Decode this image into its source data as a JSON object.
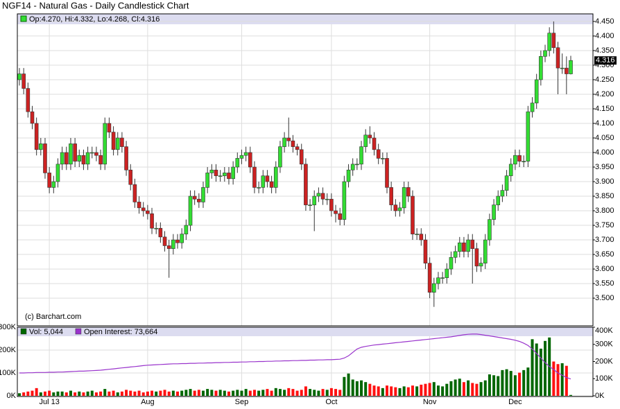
{
  "chart_data": [
    {
      "type": "candlestick",
      "title": "NGF14 - Natural Gas - Daily Candlestick Chart",
      "legend": "Op:4.270, Hi:4.332, Lo:4.268, Cl:4.316",
      "close_label": "4.316",
      "watermark": "(c) Barchart.com",
      "up_color": "#33dd33",
      "down_color": "#cc2222",
      "grid": true,
      "ylim": [
        3.405,
        4.476
      ],
      "yticks": [
        {
          "value": 3.5,
          "label": "3.500"
        },
        {
          "value": 3.55,
          "label": "3.550"
        },
        {
          "value": 3.6,
          "label": "3.600"
        },
        {
          "value": 3.65,
          "label": "3.650"
        },
        {
          "value": 3.7,
          "label": "3.700"
        },
        {
          "value": 3.75,
          "label": "3.750"
        },
        {
          "value": 3.8,
          "label": "3.800"
        },
        {
          "value": 3.85,
          "label": "3.850"
        },
        {
          "value": 3.9,
          "label": "3.900"
        },
        {
          "value": 3.95,
          "label": "3.950"
        },
        {
          "value": 4.0,
          "label": "4.000"
        },
        {
          "value": 4.05,
          "label": "4.050"
        },
        {
          "value": 4.1,
          "label": "4.100"
        },
        {
          "value": 4.15,
          "label": "4.150"
        },
        {
          "value": 4.2,
          "label": "4.200"
        },
        {
          "value": 4.25,
          "label": "4.250"
        },
        {
          "value": 4.3,
          "label": "4.300"
        },
        {
          "value": 4.35,
          "label": "4.350"
        },
        {
          "value": 4.4,
          "label": "4.400"
        },
        {
          "value": 4.45,
          "label": "4.450"
        }
      ],
      "open": [
        4.25,
        4.27,
        4.22,
        4.14,
        4.1,
        4.01,
        4.03,
        3.93,
        3.88,
        3.9,
        3.96,
        4.0,
        3.96,
        4.03,
        3.97,
        3.99,
        3.96,
        4.0,
        4.0,
        3.99,
        3.96,
        4.1,
        4.07,
        4.01,
        4.05,
        4.02,
        3.94,
        3.89,
        3.83,
        3.81,
        3.8,
        3.79,
        3.74,
        3.74,
        3.71,
        3.68,
        3.67,
        3.7,
        3.69,
        3.72,
        3.75,
        3.85,
        3.84,
        3.83,
        3.88,
        3.93,
        3.94,
        3.92,
        3.92,
        3.93,
        3.91,
        3.95,
        3.98,
        3.99,
        4.0,
        3.95,
        3.88,
        3.88,
        3.92,
        3.9,
        3.88,
        3.95,
        4.02,
        4.05,
        4.04,
        4.02,
        4.01,
        3.96,
        3.82,
        3.82,
        3.85,
        3.86,
        3.84,
        3.84,
        3.8,
        3.79,
        3.77,
        3.9,
        3.94,
        3.96,
        3.96,
        4.02,
        4.06,
        4.05,
        4.01,
        3.98,
        3.98,
        3.88,
        3.82,
        3.8,
        3.81,
        3.88,
        3.85,
        3.72,
        3.72,
        3.7,
        3.62,
        3.52,
        3.55,
        3.57,
        3.57,
        3.6,
        3.64,
        3.66,
        3.69,
        3.66,
        3.7,
        3.67,
        3.61,
        3.62,
        3.7,
        3.77,
        3.82,
        3.85,
        3.87,
        3.92,
        3.96,
        3.99,
        3.97,
        3.97,
        4.14,
        4.17,
        4.25,
        4.33,
        4.35,
        4.41,
        4.36,
        4.29,
        4.29,
        4.27
      ],
      "high": [
        4.29,
        4.29,
        4.24,
        4.16,
        4.12,
        4.05,
        4.05,
        3.95,
        3.92,
        3.98,
        4.02,
        4.02,
        4.05,
        4.05,
        4.01,
        4.01,
        4.02,
        4.02,
        4.02,
        4.01,
        4.12,
        4.12,
        4.09,
        4.07,
        4.07,
        4.04,
        3.96,
        3.91,
        3.85,
        3.83,
        3.82,
        3.81,
        3.76,
        3.76,
        3.73,
        3.7,
        3.72,
        3.72,
        3.74,
        3.77,
        3.87,
        3.87,
        3.86,
        3.9,
        3.95,
        3.96,
        3.96,
        3.94,
        3.95,
        3.95,
        3.97,
        4.0,
        4.01,
        4.02,
        4.02,
        3.97,
        3.9,
        3.94,
        3.94,
        3.92,
        3.97,
        4.04,
        4.07,
        4.12,
        4.06,
        4.03,
        4.03,
        3.98,
        3.84,
        3.87,
        3.88,
        3.88,
        3.86,
        3.86,
        3.82,
        3.81,
        3.92,
        3.96,
        3.98,
        3.98,
        4.04,
        4.08,
        4.09,
        4.07,
        4.03,
        4.0,
        4.0,
        3.9,
        3.84,
        3.83,
        3.9,
        3.9,
        3.87,
        3.74,
        3.74,
        3.72,
        3.64,
        3.57,
        3.59,
        3.59,
        3.62,
        3.66,
        3.68,
        3.71,
        3.71,
        3.72,
        3.72,
        3.69,
        3.64,
        3.72,
        3.79,
        3.84,
        3.87,
        3.89,
        3.94,
        3.98,
        4.01,
        4.01,
        3.99,
        4.16,
        4.19,
        4.27,
        4.35,
        4.37,
        4.43,
        4.45,
        4.38,
        4.34,
        4.33,
        4.332
      ],
      "low": [
        4.23,
        4.2,
        4.12,
        4.08,
        3.99,
        3.99,
        3.91,
        3.86,
        3.86,
        3.88,
        3.94,
        3.94,
        3.94,
        3.95,
        3.95,
        3.94,
        3.94,
        3.98,
        3.97,
        3.94,
        3.94,
        4.05,
        3.99,
        3.99,
        4.0,
        3.92,
        3.87,
        3.81,
        3.79,
        3.78,
        3.77,
        3.72,
        3.72,
        3.69,
        3.66,
        3.57,
        3.65,
        3.67,
        3.67,
        3.7,
        3.73,
        3.82,
        3.81,
        3.81,
        3.86,
        3.91,
        3.9,
        3.9,
        3.9,
        3.89,
        3.89,
        3.93,
        3.96,
        3.97,
        3.93,
        3.86,
        3.86,
        3.86,
        3.88,
        3.86,
        3.86,
        3.93,
        4.0,
        4.02,
        4.0,
        3.99,
        3.94,
        3.8,
        3.8,
        3.73,
        3.83,
        3.82,
        3.82,
        3.78,
        3.76,
        3.75,
        3.75,
        3.88,
        3.92,
        3.94,
        3.94,
        4.0,
        4.03,
        3.99,
        3.96,
        3.96,
        3.86,
        3.8,
        3.78,
        3.78,
        3.79,
        3.83,
        3.7,
        3.7,
        3.68,
        3.6,
        3.5,
        3.47,
        3.53,
        3.55,
        3.55,
        3.58,
        3.62,
        3.64,
        3.64,
        3.64,
        3.55,
        3.59,
        3.59,
        3.6,
        3.68,
        3.75,
        3.8,
        3.83,
        3.85,
        3.9,
        3.94,
        3.95,
        3.95,
        3.95,
        4.12,
        4.15,
        4.23,
        4.31,
        4.33,
        4.34,
        4.2,
        4.27,
        4.2,
        4.268
      ],
      "close": [
        4.27,
        4.22,
        4.14,
        4.1,
        4.01,
        4.03,
        3.93,
        3.88,
        3.9,
        3.96,
        4.0,
        3.96,
        4.03,
        3.97,
        3.99,
        3.96,
        4.0,
        4.0,
        3.99,
        3.96,
        4.1,
        4.07,
        4.01,
        4.05,
        4.02,
        3.94,
        3.89,
        3.83,
        3.81,
        3.8,
        3.79,
        3.74,
        3.74,
        3.71,
        3.68,
        3.67,
        3.7,
        3.69,
        3.72,
        3.75,
        3.85,
        3.84,
        3.83,
        3.88,
        3.93,
        3.94,
        3.92,
        3.92,
        3.93,
        3.91,
        3.95,
        3.98,
        3.99,
        4.0,
        3.95,
        3.88,
        3.88,
        3.92,
        3.9,
        3.88,
        3.95,
        4.02,
        4.05,
        4.04,
        4.02,
        4.01,
        3.96,
        3.82,
        3.82,
        3.85,
        3.86,
        3.84,
        3.84,
        3.8,
        3.79,
        3.77,
        3.9,
        3.94,
        3.96,
        3.96,
        4.02,
        4.06,
        4.05,
        4.01,
        3.98,
        3.98,
        3.88,
        3.82,
        3.8,
        3.81,
        3.88,
        3.85,
        3.72,
        3.72,
        3.7,
        3.62,
        3.52,
        3.55,
        3.57,
        3.57,
        3.6,
        3.64,
        3.66,
        3.69,
        3.66,
        3.7,
        3.67,
        3.61,
        3.62,
        3.7,
        3.77,
        3.82,
        3.85,
        3.87,
        3.92,
        3.96,
        3.99,
        3.97,
        3.97,
        4.14,
        4.17,
        4.25,
        4.33,
        4.35,
        4.41,
        4.36,
        4.29,
        4.29,
        4.27,
        4.316
      ]
    },
    {
      "type": "bar",
      "categories": [
        null,
        null,
        null,
        null,
        null,
        null,
        null,
        "Jul 13",
        null,
        null,
        null,
        null,
        null,
        null,
        null,
        null,
        null,
        null,
        null,
        null,
        null,
        null,
        null,
        null,
        null,
        null,
        null,
        null,
        null,
        null,
        "Aug",
        null,
        null,
        null,
        null,
        null,
        null,
        null,
        null,
        null,
        null,
        null,
        null,
        null,
        null,
        null,
        null,
        null,
        null,
        null,
        null,
        null,
        "Sep",
        null,
        null,
        null,
        null,
        null,
        null,
        null,
        null,
        null,
        null,
        null,
        null,
        null,
        null,
        null,
        null,
        null,
        null,
        null,
        null,
        "Oct",
        null,
        null,
        null,
        null,
        null,
        null,
        null,
        null,
        null,
        null,
        null,
        null,
        null,
        null,
        null,
        null,
        null,
        null,
        null,
        null,
        null,
        null,
        "Nov",
        null,
        null,
        null,
        null,
        null,
        null,
        null,
        null,
        null,
        null,
        null,
        null,
        null,
        null,
        null,
        null,
        null,
        null,
        null,
        "Dec",
        null,
        null,
        null,
        null,
        null,
        null,
        null,
        null,
        null,
        null,
        null,
        null,
        null
      ],
      "up_color": "#006600",
      "down_color": "#ff1111",
      "grid": true,
      "ylim": [
        0,
        400000
      ],
      "yticks": [
        {
          "value": 0,
          "label": "0K"
        },
        {
          "value": 100000,
          "label": "100K"
        },
        {
          "value": 200000,
          "label": "200K"
        },
        {
          "value": 300000,
          "label": "300K"
        },
        {
          "value": 400000,
          "label": "400K"
        }
      ],
      "y2lim": [
        0,
        300000
      ],
      "y2ticks": [
        {
          "value": 0,
          "label": "0K"
        },
        {
          "value": 100000,
          "label": "100K"
        },
        {
          "value": 200000,
          "label": "200K"
        },
        {
          "value": 300000,
          "label": "300K"
        }
      ],
      "series": [
        {
          "name": "Vol: 5,044",
          "color": "#006600",
          "values": [
            15000,
            20000,
            25000,
            30000,
            45000,
            20000,
            25000,
            30000,
            20000,
            25000,
            25000,
            20000,
            30000,
            20000,
            25000,
            20000,
            25000,
            30000,
            20000,
            25000,
            40000,
            25000,
            30000,
            20000,
            25000,
            35000,
            30000,
            25000,
            30000,
            20000,
            25000,
            30000,
            25000,
            30000,
            35000,
            25000,
            30000,
            25000,
            30000,
            35000,
            40000,
            30000,
            35000,
            30000,
            40000,
            35000,
            30000,
            35000,
            30000,
            25000,
            30000,
            35000,
            30000,
            40000,
            30000,
            35000,
            30000,
            35000,
            40000,
            30000,
            45000,
            40000,
            35000,
            45000,
            40000,
            30000,
            35000,
            55000,
            40000,
            35000,
            30000,
            40000,
            35000,
            45000,
            40000,
            35000,
            110000,
            130000,
            95000,
            85000,
            90000,
            80000,
            70000,
            60000,
            55000,
            45000,
            60000,
            55000,
            50000,
            45000,
            55000,
            50000,
            60000,
            55000,
            65000,
            70000,
            75000,
            80000,
            60000,
            55000,
            70000,
            85000,
            95000,
            100000,
            80000,
            90000,
            75000,
            70000,
            80000,
            90000,
            125000,
            120000,
            115000,
            150000,
            155000,
            145000,
            120000,
            135000,
            150000,
            165000,
            330000,
            305000,
            275000,
            320000,
            340000,
            200000,
            185000,
            190000,
            175000,
            5044
          ]
        },
        {
          "name": "Open Interest: 73,664",
          "color": "#9933cc",
          "axis": "y2",
          "values": [
            100000,
            100000,
            101000,
            101000,
            102000,
            102000,
            102000,
            103000,
            103000,
            104000,
            104000,
            105000,
            106000,
            107000,
            108000,
            108000,
            109000,
            110000,
            111000,
            112000,
            114000,
            116000,
            118000,
            120000,
            122000,
            124000,
            126000,
            128000,
            130000,
            132000,
            134000,
            135000,
            136000,
            137000,
            138000,
            139000,
            140000,
            140000,
            141000,
            141000,
            142000,
            142000,
            143000,
            143000,
            144000,
            144000,
            145000,
            145000,
            146000,
            146000,
            147000,
            147000,
            148000,
            148000,
            149000,
            149000,
            150000,
            150000,
            151000,
            151000,
            152000,
            152000,
            153000,
            153000,
            154000,
            154000,
            155000,
            155000,
            156000,
            156000,
            157000,
            157000,
            158000,
            158000,
            159000,
            160000,
            165000,
            175000,
            190000,
            205000,
            212000,
            216000,
            219000,
            222000,
            224000,
            226000,
            228000,
            230000,
            232000,
            234000,
            236000,
            238000,
            240000,
            242000,
            244000,
            246000,
            248000,
            250000,
            252000,
            254000,
            256000,
            258000,
            261000,
            264000,
            267000,
            269000,
            270000,
            270000,
            268000,
            265000,
            262000,
            259000,
            256000,
            253000,
            250000,
            247000,
            243000,
            238000,
            230000,
            220000,
            205000,
            185000,
            165000,
            145000,
            128000,
            115000,
            100000,
            90000,
            80000,
            73664
          ]
        }
      ]
    }
  ]
}
